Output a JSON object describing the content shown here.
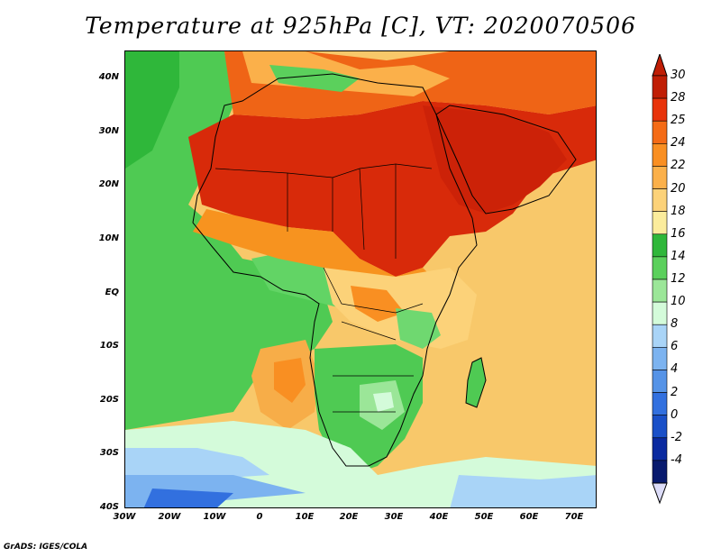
{
  "title": "Temperature at 925hPa [C], VT: 2020070506",
  "footer": "GrADS: IGES/COLA",
  "latitude_labels": [
    "40N",
    "30N",
    "20N",
    "10N",
    "EQ",
    "10S",
    "20S",
    "30S",
    "40S"
  ],
  "longitude_labels": [
    "30W",
    "20W",
    "10W",
    "0",
    "10E",
    "20E",
    "30E",
    "40E",
    "50E",
    "60E",
    "70E"
  ],
  "colorbar": {
    "labels": [
      "30",
      "28",
      "25",
      "24",
      "22",
      "20",
      "18",
      "16",
      "14",
      "12",
      "10",
      "8",
      "6",
      "4",
      "2",
      "0",
      "-2",
      "-4"
    ],
    "colors": [
      "#c01e05",
      "#e8330a",
      "#f46b16",
      "#f98f22",
      "#fbb04a",
      "#fcd279",
      "#fbec9c",
      "#2fb73a",
      "#5bd05c",
      "#9be698",
      "#d4fbda",
      "#a9d4f7",
      "#7cb3f0",
      "#5593e7",
      "#3270df",
      "#1a50c8",
      "#0a2aa0",
      "#081a6e"
    ]
  },
  "map_regions": {
    "ocean_south": "Southern Atlantic / Indian Ocean",
    "sahara": "Sahara",
    "arabia": "Arabian Peninsula",
    "southern_africa": "Southern Africa"
  }
}
